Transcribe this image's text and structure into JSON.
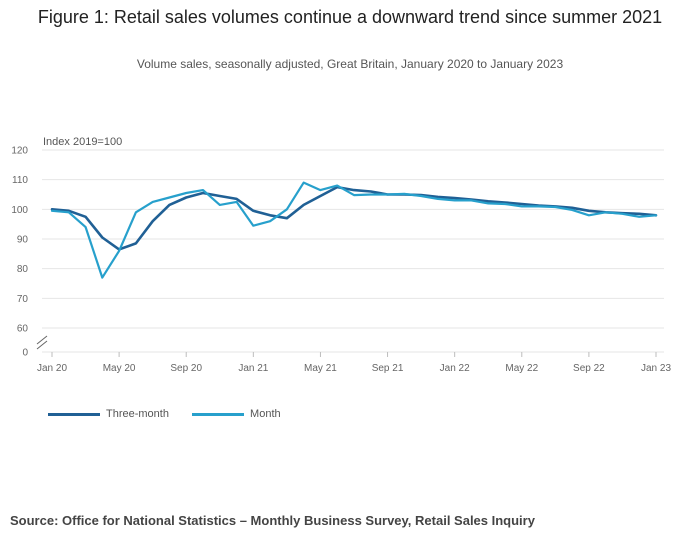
{
  "title": "Figure 1: Retail sales volumes continue a downward trend since summer 2021",
  "subtitle": "Volume sales, seasonally adjusted, Great Britain, January 2020 to January 2023",
  "source": "Source: Office for National Statistics – Monthly Business Survey, Retail Sales Inquiry",
  "colors": {
    "three_month": "#206095",
    "month": "#27a0cc",
    "grid": "#e6e6e6",
    "axis": "#bdbdbd"
  },
  "chart_data": {
    "type": "line",
    "ylabel": "Index 2019=100",
    "xlabel": "",
    "ylim": [
      0,
      120
    ],
    "axis_break": [
      0,
      60
    ],
    "yticks": [
      0,
      60,
      70,
      80,
      90,
      100,
      110,
      120
    ],
    "xtick_labels": [
      "Jan 20",
      "May 20",
      "Sep 20",
      "Jan 21",
      "May 21",
      "Sep 21",
      "Jan 22",
      "May 22",
      "Sep 22",
      "Jan 23"
    ],
    "xtick_every": 4,
    "x": [
      "Jan 20",
      "Feb 20",
      "Mar 20",
      "Apr 20",
      "May 20",
      "Jun 20",
      "Jul 20",
      "Aug 20",
      "Sep 20",
      "Oct 20",
      "Nov 20",
      "Dec 20",
      "Jan 21",
      "Feb 21",
      "Mar 21",
      "Apr 21",
      "May 21",
      "Jun 21",
      "Jul 21",
      "Aug 21",
      "Sep 21",
      "Oct 21",
      "Nov 21",
      "Dec 21",
      "Jan 22",
      "Feb 22",
      "Mar 22",
      "Apr 22",
      "May 22",
      "Jun 22",
      "Jul 22",
      "Aug 22",
      "Sep 22",
      "Oct 22",
      "Nov 22",
      "Dec 22",
      "Jan 23"
    ],
    "series": [
      {
        "name": "Three-month",
        "values": [
          100,
          99.5,
          97.5,
          90.5,
          86.5,
          88.5,
          96,
          101.5,
          104,
          105.5,
          104.5,
          103.5,
          99.5,
          98,
          97,
          101.5,
          104.5,
          107.5,
          106.5,
          106,
          105,
          105,
          104.8,
          104.2,
          103.8,
          103.3,
          102.7,
          102.3,
          101.8,
          101.3,
          101,
          100.5,
          99.5,
          99,
          98.7,
          98.5,
          98
        ]
      },
      {
        "name": "Month",
        "values": [
          99.5,
          99,
          94,
          77,
          86,
          99,
          102.5,
          104,
          105.5,
          106.5,
          101.5,
          102.5,
          94.5,
          96,
          100,
          109,
          106.5,
          108,
          104.8,
          105,
          105,
          105.2,
          104.5,
          103.5,
          103,
          103,
          102,
          101.8,
          101,
          101,
          100.8,
          99.8,
          98,
          99,
          98.5,
          97.5,
          98
        ]
      }
    ]
  }
}
